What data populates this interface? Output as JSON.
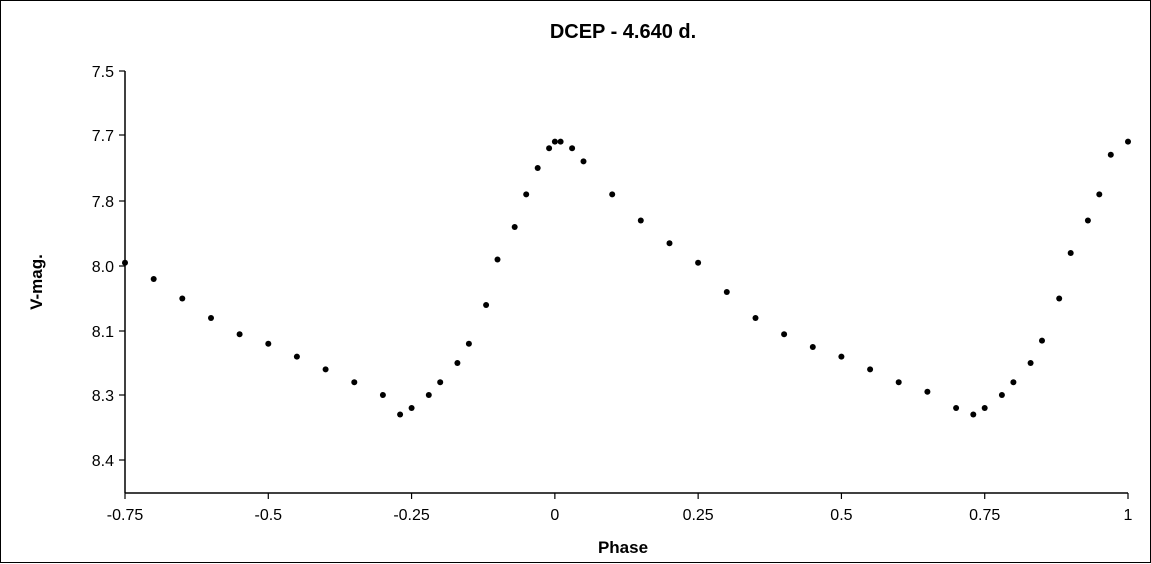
{
  "chart_data": {
    "type": "scatter",
    "title": "DCEP - 4.640 d.",
    "xlabel": "Phase",
    "ylabel": "V-mag.",
    "xlim": [
      -0.75,
      1.0
    ],
    "ylim": [
      7.5,
      8.45
    ],
    "y_inverted": true,
    "grid": false,
    "legend": "none",
    "x_ticks": [
      -0.75,
      -0.5,
      -0.25,
      0,
      0.25,
      0.5,
      0.75,
      1
    ],
    "x_tick_labels": [
      "-0.75",
      "-0.5",
      "-0.25",
      "0",
      "0.25",
      "0.5",
      "0.75",
      "1"
    ],
    "y_ticks": [
      7.5,
      7.7,
      7.8,
      8.0,
      8.1,
      8.3,
      8.4
    ],
    "y_tick_labels": [
      "7.5",
      "7.7",
      "7.8",
      "8.0",
      "8.1",
      "8.3",
      "8.4"
    ],
    "marker_color": "#000000",
    "series": [
      {
        "x": [
          -0.75,
          -0.7,
          -0.65,
          -0.6,
          -0.55,
          -0.5,
          -0.45,
          -0.4,
          -0.35,
          -0.3,
          -0.27,
          -0.25,
          -0.22,
          -0.2,
          -0.17,
          -0.15,
          -0.12,
          -0.1,
          -0.07,
          -0.05,
          -0.03,
          -0.01,
          0.0,
          0.01,
          0.03,
          0.05,
          0.1,
          0.15,
          0.2,
          0.25,
          0.3,
          0.35,
          0.4,
          0.45,
          0.5,
          0.55,
          0.6,
          0.65,
          0.7,
          0.73,
          0.75,
          0.78,
          0.8,
          0.83,
          0.85,
          0.88,
          0.9,
          0.93,
          0.95,
          0.97,
          1.0
        ],
        "y": [
          7.99,
          8.02,
          8.05,
          8.08,
          8.11,
          8.14,
          8.18,
          8.22,
          8.26,
          8.3,
          8.33,
          8.32,
          8.3,
          8.26,
          8.2,
          8.14,
          8.06,
          7.98,
          7.88,
          7.79,
          7.75,
          7.72,
          7.71,
          7.71,
          7.72,
          7.74,
          7.79,
          7.86,
          7.93,
          7.99,
          8.04,
          8.08,
          8.11,
          8.15,
          8.18,
          8.22,
          8.26,
          8.29,
          8.32,
          8.33,
          8.32,
          8.3,
          8.26,
          8.2,
          8.13,
          8.05,
          7.96,
          7.86,
          7.79,
          7.73,
          7.71
        ]
      }
    ]
  }
}
